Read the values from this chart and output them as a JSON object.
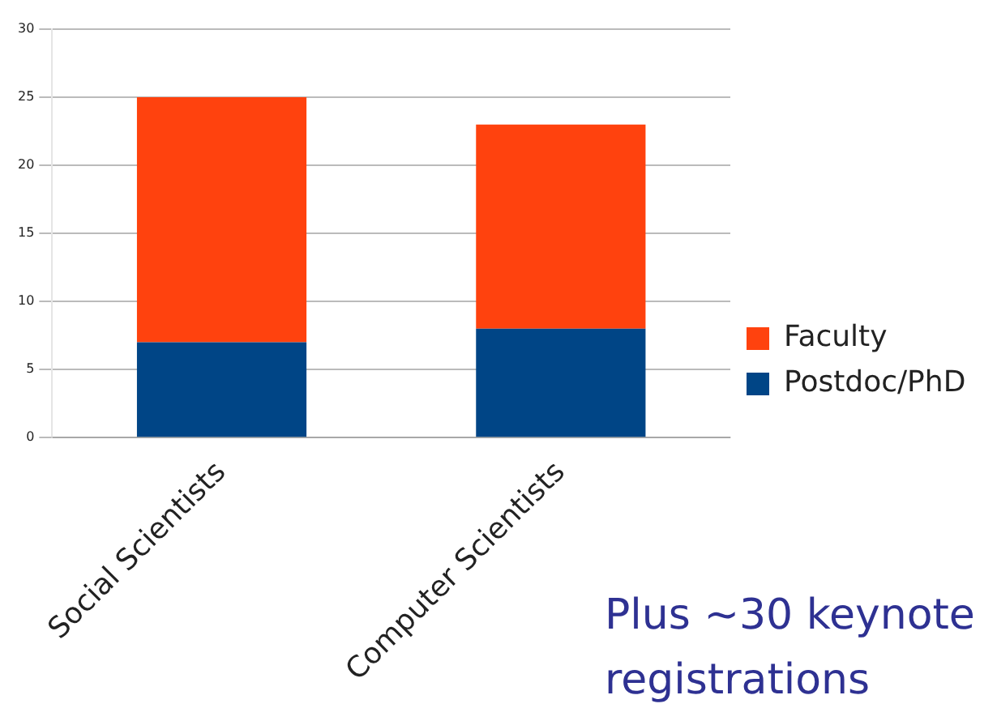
{
  "chart_data": {
    "type": "bar",
    "stacked": true,
    "categories": [
      "Social Scientists",
      "Computer Scientists"
    ],
    "series": [
      {
        "name": "Postdoc/PhD",
        "color": "#004586",
        "values": [
          7,
          8
        ]
      },
      {
        "name": "Faculty",
        "color": "#ff420e",
        "values": [
          18,
          15
        ]
      }
    ],
    "ylim": [
      0,
      30
    ],
    "yticks": [
      0,
      5,
      10,
      15,
      20,
      25,
      30
    ],
    "grid": "y",
    "legend": "right",
    "annotations": [
      "Plus ~30 keynote registrations"
    ]
  }
}
